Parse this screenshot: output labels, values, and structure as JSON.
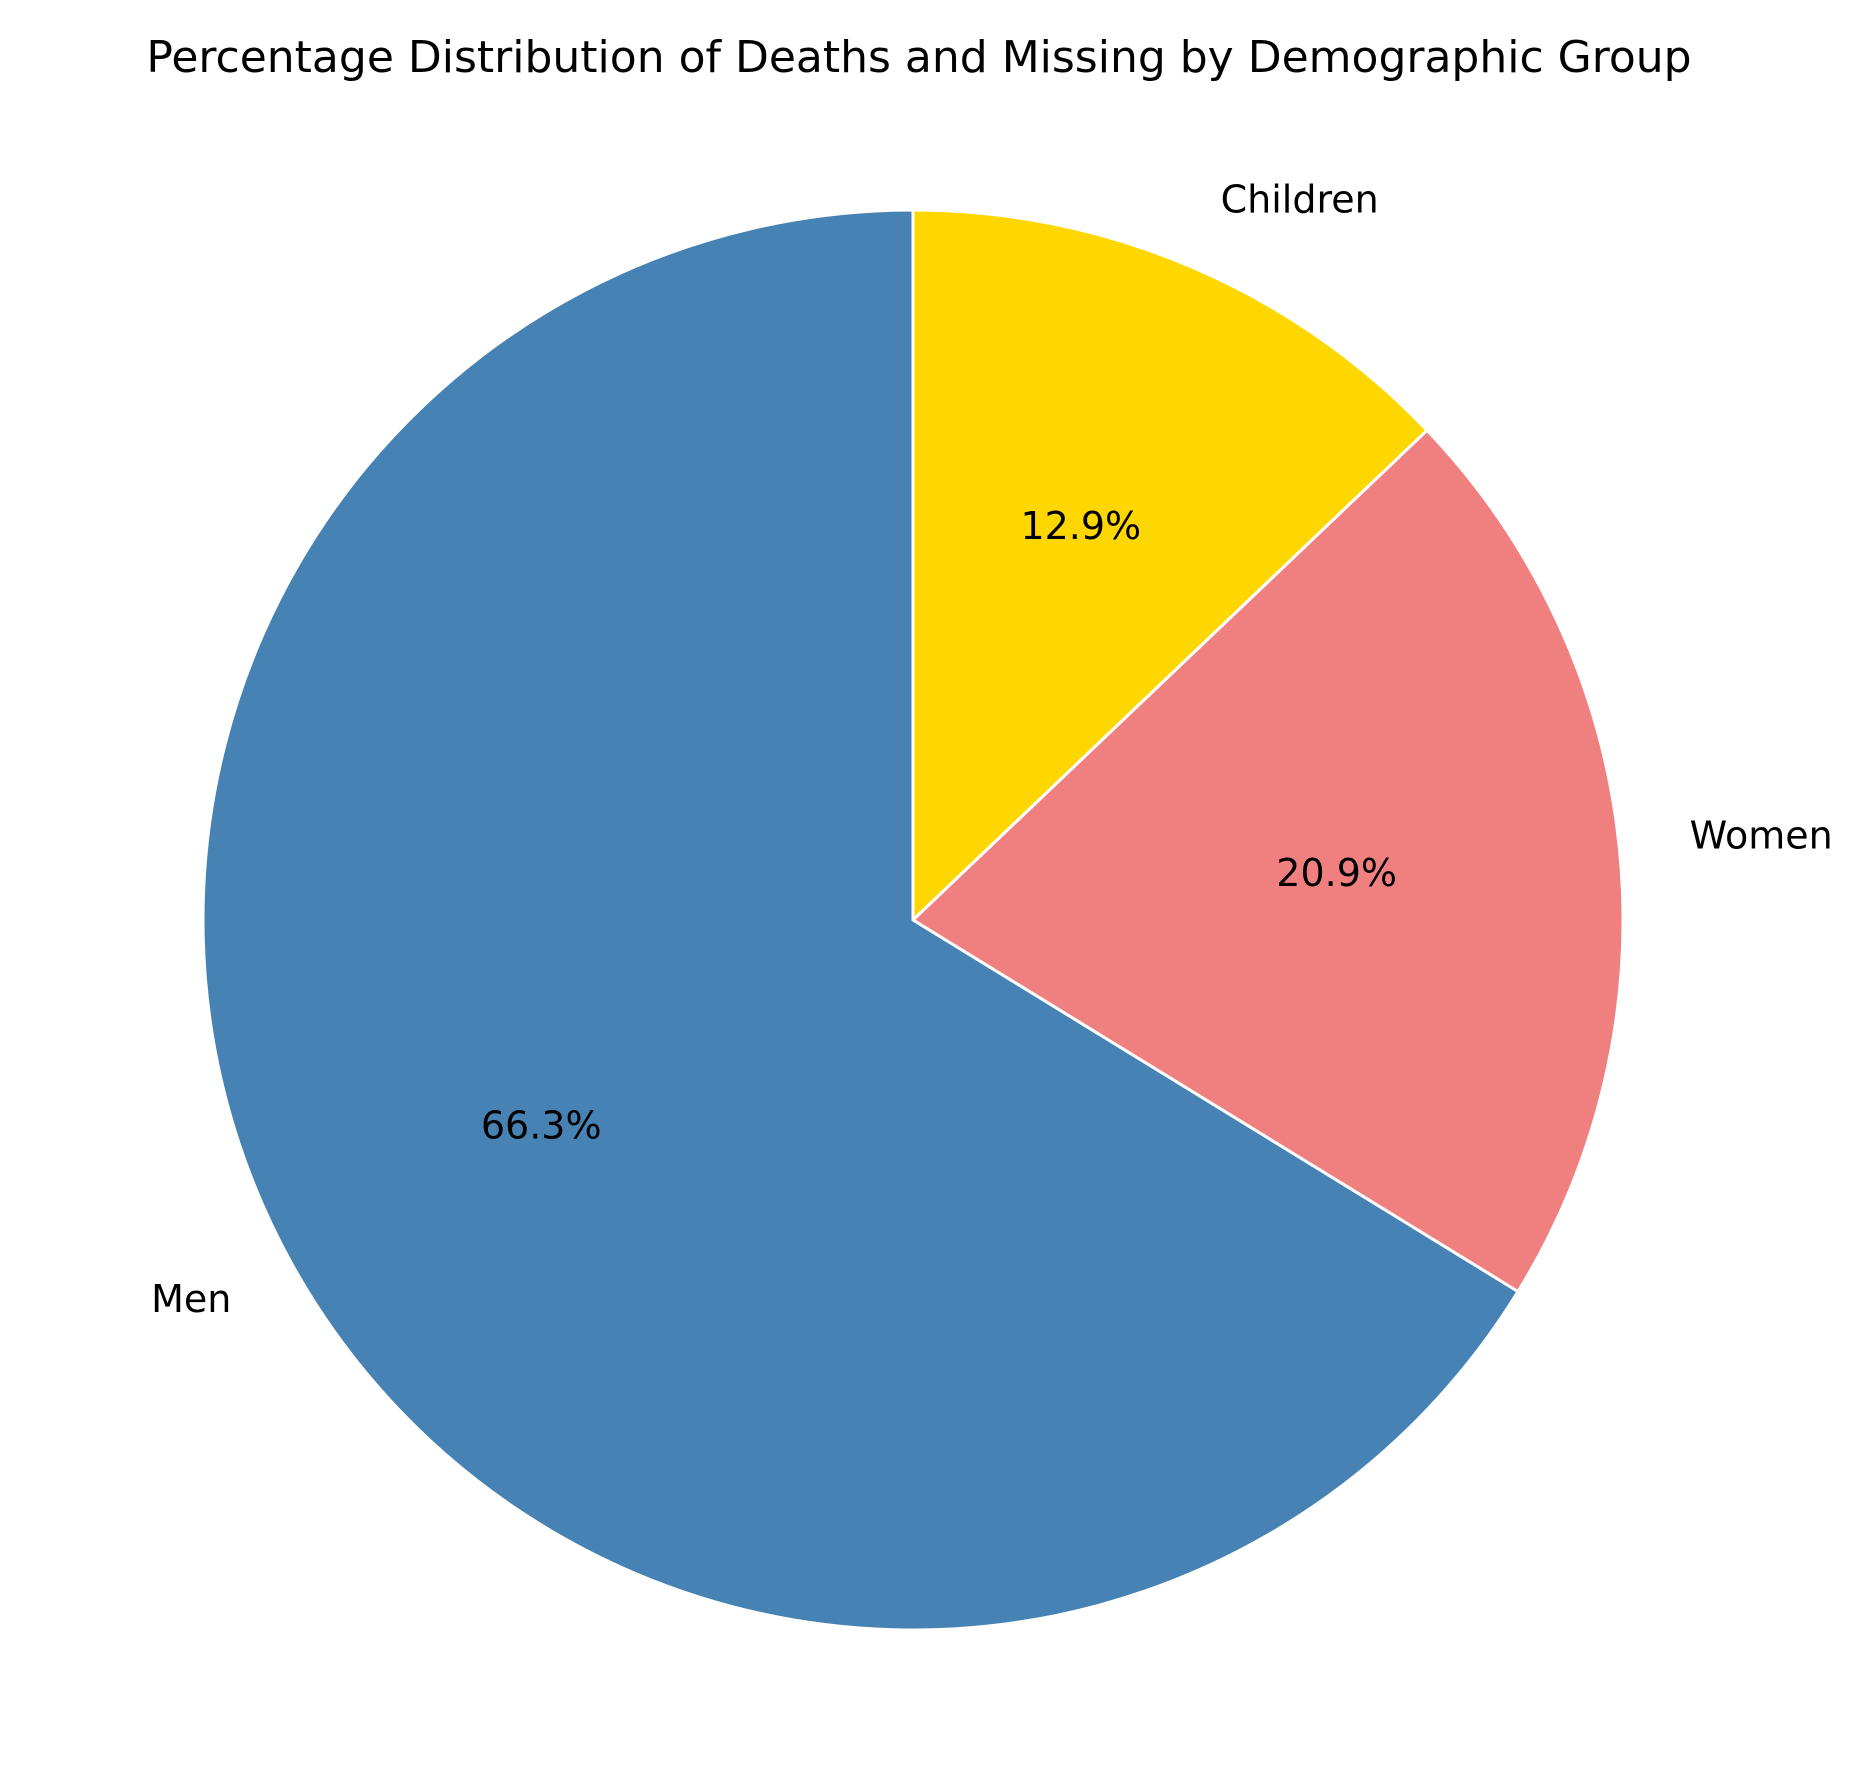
{
  "chart_data": {
    "type": "pie",
    "title": "Percentage Distribution of Deaths and Missing by Demographic Group",
    "start_angle_deg": 90,
    "direction": "clockwise",
    "slices": [
      {
        "label": "Children",
        "value": 12.9,
        "pct_label": "12.9%",
        "color": "#FFD700"
      },
      {
        "label": "Women",
        "value": 20.9,
        "pct_label": "20.9%",
        "color": "#F08080"
      },
      {
        "label": "Men",
        "value": 66.3,
        "pct_label": "66.3%",
        "color": "#4682B4"
      }
    ]
  }
}
